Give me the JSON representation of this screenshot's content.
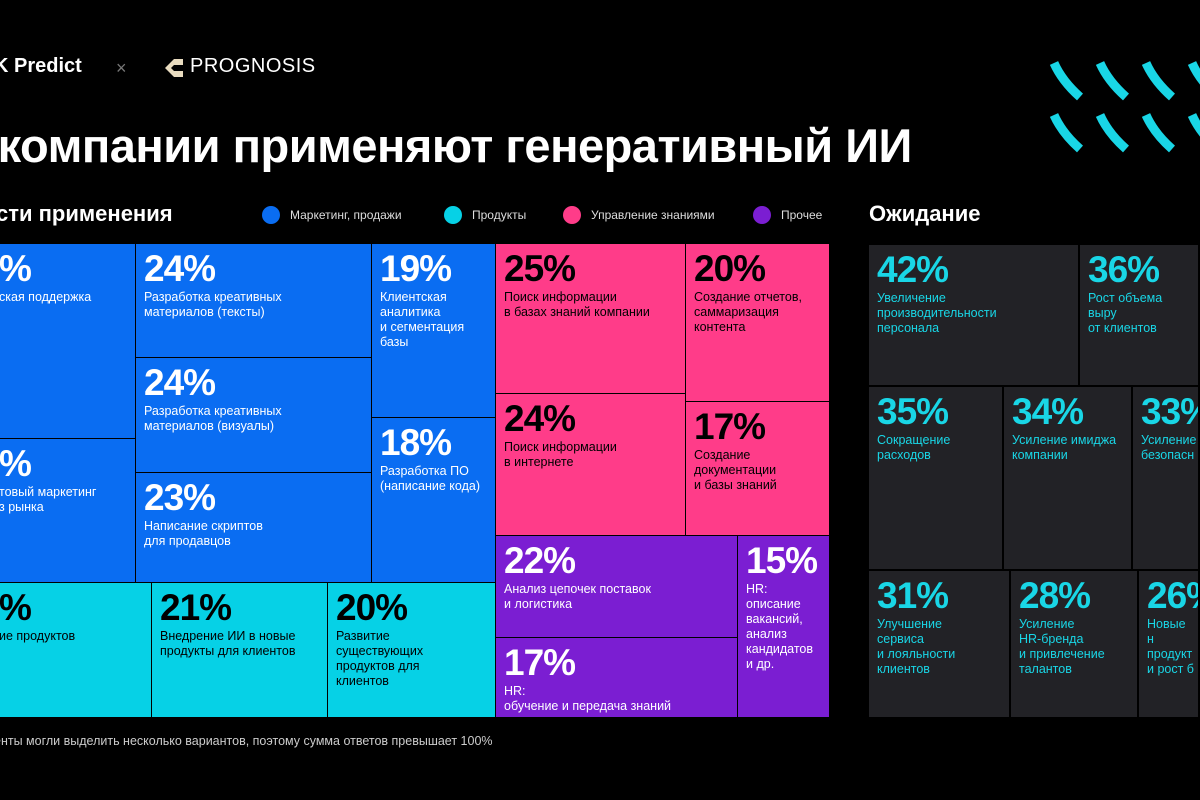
{
  "header": {
    "brand_left": "K Predict",
    "separator": "×",
    "brand_right": "PROGNOSIS",
    "title": "к компании применяют генеративный ИИ"
  },
  "sections": {
    "left_label": "сти применения",
    "right_label": "Ожидание"
  },
  "legend": [
    {
      "label": "Маркетинг, продажи",
      "color": "#0a6df2"
    },
    {
      "label": "Продукты",
      "color": "#06d1e6"
    },
    {
      "label": "Управление знаниями",
      "color": "#ff3c89"
    },
    {
      "label": "Прочее",
      "color": "#7b1ed2"
    }
  ],
  "footnote": "енты могли выделить несколько вариантов, поэтому сумма ответов превышает 100%",
  "chart_data": [
    {
      "type": "treemap",
      "title": "сти применения",
      "items": [
        {
          "value": "%",
          "label": "ская поддержка",
          "category": "Маркетинг, продажи"
        },
        {
          "value": "24%",
          "label": "Разработка креативных\nматериалов (тексты)",
          "category": "Маркетинг, продажи"
        },
        {
          "value": "19%",
          "label": "Клиентская\nаналитика\nи сегментация\nбазы",
          "category": "Маркетинг, продажи"
        },
        {
          "value": "24%",
          "label": "Разработка креативных\nматериалов (визуалы)",
          "category": "Маркетинг, продажи"
        },
        {
          "value": "%",
          "label": "товый маркетинг\nз рынка",
          "category": "Маркетинг, продажи"
        },
        {
          "value": "18%",
          "label": "Разработка ПО\n(написание кода)",
          "category": "Маркетинг, продажи"
        },
        {
          "value": "23%",
          "label": "Написание скриптов\nдля продавцов",
          "category": "Маркетинг, продажи"
        },
        {
          "value": "%",
          "label": "ие продуктов",
          "category": "Продукты"
        },
        {
          "value": "21%",
          "label": "Внедрение ИИ в новые\nпродукты для клиентов",
          "category": "Продукты"
        },
        {
          "value": "20%",
          "label": "Развитие\nсуществующих\nпродуктов для\nклиентов",
          "category": "Продукты"
        },
        {
          "value": "25%",
          "label": "Поиск информации\nв базах знаний компании",
          "category": "Управление знаниями"
        },
        {
          "value": "20%",
          "label": "Создание отчетов,\nсаммаризация\nконтента",
          "category": "Управление знаниями"
        },
        {
          "value": "24%",
          "label": "Поиск информации\nв интернете",
          "category": "Управление знаниями"
        },
        {
          "value": "17%",
          "label": "Создание\nдокументации\nи базы знаний",
          "category": "Управление знаниями"
        },
        {
          "value": "22%",
          "label": "Анализ цепочек поставок\nи логистика",
          "category": "Прочее"
        },
        {
          "value": "15%",
          "label": "HR:\nописание\nвакансий,\nанализ\nкандидатов\nи др.",
          "category": "Прочее"
        },
        {
          "value": "17%",
          "label": "HR:\nобучение и передача знаний",
          "category": "Прочее"
        }
      ]
    },
    {
      "type": "treemap",
      "title": "Ожидание",
      "items": [
        {
          "value": "42%",
          "label": "Увеличение\nпроизводительности\nперсонала"
        },
        {
          "value": "36%",
          "label": "Рост объема выру\nот клиентов"
        },
        {
          "value": "35%",
          "label": "Сокращение\nрасходов"
        },
        {
          "value": "34%",
          "label": "Усиление имиджа\nкомпании"
        },
        {
          "value": "33%",
          "label": "Усиление\nбезопасн"
        },
        {
          "value": "31%",
          "label": "Улучшение\nсервиса\nи лояльности\nклиентов"
        },
        {
          "value": "28%",
          "label": "Усиление\nHR-бренда\nи привлечение\nталантов"
        },
        {
          "value": "26%",
          "label": "Новые н\nпродукт\nи рост б"
        }
      ]
    }
  ]
}
